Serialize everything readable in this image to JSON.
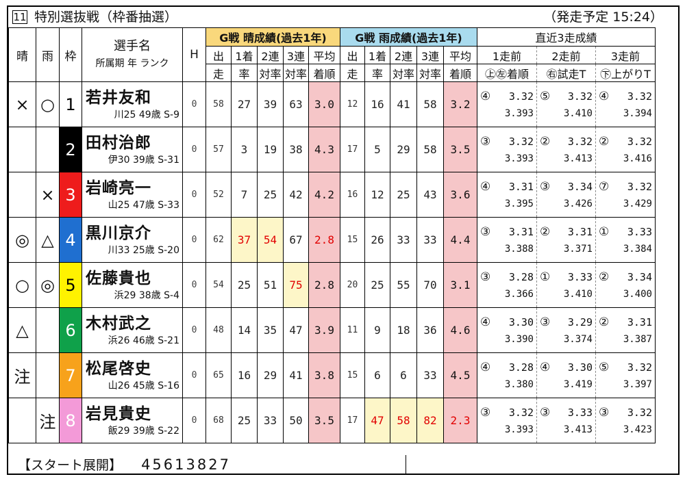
{
  "race": {
    "number": "11",
    "name": "特別選抜戦（枠番抽選）",
    "start_time": "（発走予定 15:24）"
  },
  "headers": {
    "dry": "晴",
    "wet": "雨",
    "frame": "枠",
    "name_main": "選手名",
    "name_sub": "所属期 年 ランク",
    "handicap": "H",
    "dry_group": "G戦 晴成績(過去1年)",
    "rain_group": "G戦 雨成績(過去1年)",
    "recent_group": "直近3走成績",
    "starts": [
      "出",
      "走"
    ],
    "win": [
      "1着",
      "率"
    ],
    "quinella": [
      "2連",
      "対率"
    ],
    "trio": [
      "3連",
      "対率"
    ],
    "avg": [
      "平均",
      "着順"
    ],
    "recent_cols": [
      "1走前",
      "2走前",
      "3走前"
    ],
    "recent_sub": [
      "㊤㊧着順",
      "㊨試走T",
      "㊦上がりT"
    ]
  },
  "colors": {
    "dry_header": "#f9d87c",
    "rain_header": "#a9dbee",
    "avg_cell": "#f6c6c8",
    "highlight_cell": "#fdf6c8",
    "highlight_text": "#e10000"
  },
  "riders": [
    {
      "dry_mark": "×",
      "wet_mark": "○",
      "frame": "1",
      "frame_bg": "#ffffff",
      "frame_fg": "#000000",
      "name": "若井友和",
      "info": "川25 49歳 S-9",
      "handicap": "0",
      "dry": {
        "starts": "58",
        "win": "27",
        "quinella": "39",
        "trio": "63",
        "avg": "3.0"
      },
      "rain": {
        "starts": "12",
        "win": "16",
        "quinella": "41",
        "trio": "58",
        "avg": "3.2"
      },
      "recent": [
        {
          "pos": "④",
          "trial": "3.32",
          "up": "3.393"
        },
        {
          "pos": "⑤",
          "trial": "3.32",
          "up": "3.410"
        },
        {
          "pos": "④",
          "trial": "3.32",
          "up": "3.394"
        }
      ]
    },
    {
      "dry_mark": "",
      "wet_mark": "",
      "frame": "2",
      "frame_bg": "#000000",
      "frame_fg": "#ffffff",
      "name": "田村治郎",
      "info": "伊30 39歳 S-31",
      "handicap": "0",
      "dry": {
        "starts": "57",
        "win": "3",
        "quinella": "19",
        "trio": "38",
        "avg": "4.3"
      },
      "rain": {
        "starts": "17",
        "win": "5",
        "quinella": "29",
        "trio": "58",
        "avg": "3.5"
      },
      "recent": [
        {
          "pos": "③",
          "trial": "3.32",
          "up": "3.393"
        },
        {
          "pos": "②",
          "trial": "3.32",
          "up": "3.413"
        },
        {
          "pos": "②",
          "trial": "3.32",
          "up": "3.416"
        }
      ]
    },
    {
      "dry_mark": "",
      "wet_mark": "×",
      "frame": "3",
      "frame_bg": "#ee1c1c",
      "frame_fg": "#ffffff",
      "name": "岩崎亮一",
      "info": "山25 47歳 S-33",
      "handicap": "0",
      "dry": {
        "starts": "52",
        "win": "7",
        "quinella": "25",
        "trio": "42",
        "avg": "4.2"
      },
      "rain": {
        "starts": "16",
        "win": "12",
        "quinella": "25",
        "trio": "43",
        "avg": "3.6"
      },
      "recent": [
        {
          "pos": "④",
          "trial": "3.31",
          "up": "3.395"
        },
        {
          "pos": "③",
          "trial": "3.34",
          "up": "3.426"
        },
        {
          "pos": "⑦",
          "trial": "3.32",
          "up": "3.429"
        }
      ]
    },
    {
      "dry_mark": "◎",
      "wet_mark": "△",
      "frame": "4",
      "frame_bg": "#1f6fd0",
      "frame_fg": "#ffffff",
      "name": "黒川京介",
      "info": "川33 25歳 S-20",
      "handicap": "0",
      "dry": {
        "starts": "62",
        "win": "37",
        "quinella": "54",
        "trio": "67",
        "avg": "2.8"
      },
      "rain": {
        "starts": "15",
        "win": "26",
        "quinella": "33",
        "trio": "33",
        "avg": "4.4"
      },
      "recent": [
        {
          "pos": "③",
          "trial": "3.31",
          "up": "3.388"
        },
        {
          "pos": "②",
          "trial": "3.31",
          "up": "3.371"
        },
        {
          "pos": "①",
          "trial": "3.33",
          "up": "3.384"
        }
      ]
    },
    {
      "dry_mark": "○",
      "wet_mark": "◎",
      "frame": "5",
      "frame_bg": "#fff200",
      "frame_fg": "#000000",
      "name": "佐藤貴也",
      "info": "浜29 38歳 S-4",
      "handicap": "0",
      "dry": {
        "starts": "54",
        "win": "25",
        "quinella": "51",
        "trio": "75",
        "avg": "2.8"
      },
      "rain": {
        "starts": "20",
        "win": "25",
        "quinella": "55",
        "trio": "70",
        "avg": "3.1"
      },
      "recent": [
        {
          "pos": "③",
          "trial": "3.28",
          "up": "3.366"
        },
        {
          "pos": "①",
          "trial": "3.33",
          "up": "3.410"
        },
        {
          "pos": "②",
          "trial": "3.34",
          "up": "3.400"
        }
      ]
    },
    {
      "dry_mark": "△",
      "wet_mark": "",
      "frame": "6",
      "frame_bg": "#0fa14a",
      "frame_fg": "#ffffff",
      "name": "木村武之",
      "info": "浜26 46歳 S-21",
      "handicap": "0",
      "dry": {
        "starts": "48",
        "win": "14",
        "quinella": "35",
        "trio": "47",
        "avg": "3.9"
      },
      "rain": {
        "starts": "11",
        "win": "9",
        "quinella": "18",
        "trio": "36",
        "avg": "4.6"
      },
      "recent": [
        {
          "pos": "④",
          "trial": "3.30",
          "up": "3.390"
        },
        {
          "pos": "③",
          "trial": "3.29",
          "up": "3.374"
        },
        {
          "pos": "②",
          "trial": "3.31",
          "up": "3.387"
        }
      ]
    },
    {
      "dry_mark": "注",
      "wet_mark": "",
      "frame": "7",
      "frame_bg": "#f7a21b",
      "frame_fg": "#ffffff",
      "name": "松尾啓史",
      "info": "山26 45歳 S-16",
      "handicap": "0",
      "dry": {
        "starts": "65",
        "win": "16",
        "quinella": "29",
        "trio": "41",
        "avg": "3.8"
      },
      "rain": {
        "starts": "15",
        "win": "6",
        "quinella": "6",
        "trio": "33",
        "avg": "4.5"
      },
      "recent": [
        {
          "pos": "④",
          "trial": "3.28",
          "up": "3.380"
        },
        {
          "pos": "④",
          "trial": "3.30",
          "up": "3.419"
        },
        {
          "pos": "⑤",
          "trial": "3.32",
          "up": "3.397"
        }
      ]
    },
    {
      "dry_mark": "",
      "wet_mark": "注",
      "frame": "8",
      "frame_bg": "#f39ad8",
      "frame_fg": "#ffffff",
      "name": "岩見貴史",
      "info": "飯29 39歳 S-22",
      "handicap": "0",
      "dry": {
        "starts": "68",
        "win": "25",
        "quinella": "33",
        "trio": "50",
        "avg": "3.5"
      },
      "rain": {
        "starts": "17",
        "win": "47",
        "quinella": "58",
        "trio": "82",
        "avg": "2.3"
      },
      "recent": [
        {
          "pos": "③",
          "trial": "3.32",
          "up": "3.393"
        },
        {
          "pos": "③",
          "trial": "3.33",
          "up": "3.413"
        },
        {
          "pos": "③",
          "trial": "3.32",
          "up": "3.423"
        }
      ]
    }
  ],
  "highlights": [
    {
      "rider": 3,
      "group": "dry",
      "field": "win"
    },
    {
      "rider": 3,
      "group": "dry",
      "field": "quinella"
    },
    {
      "rider": 3,
      "group": "dry",
      "field": "avg"
    },
    {
      "rider": 4,
      "group": "dry",
      "field": "trio"
    },
    {
      "rider": 7,
      "group": "rain",
      "field": "win"
    },
    {
      "rider": 7,
      "group": "rain",
      "field": "quinella"
    },
    {
      "rider": 7,
      "group": "rain",
      "field": "trio"
    },
    {
      "rider": 7,
      "group": "rain",
      "field": "avg"
    }
  ],
  "footer": {
    "label": "【スタート展開】",
    "order": "45613827"
  }
}
